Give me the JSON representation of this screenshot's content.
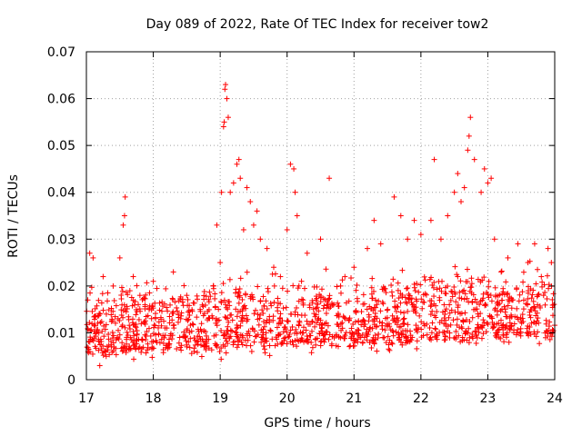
{
  "chart_data": {
    "type": "scatter",
    "title": "Day 089 of 2022, Rate Of TEC Index for receiver tow2",
    "xlabel": "GPS time / hours",
    "ylabel": "ROTI / TECUs",
    "xlim": [
      17,
      24
    ],
    "ylim": [
      0,
      0.07
    ],
    "grid": true,
    "marker": "+",
    "color": "#ff0000",
    "x_ticks": [
      17,
      18,
      19,
      20,
      21,
      22,
      23,
      24
    ],
    "x_tick_labels": [
      "17",
      "18",
      "19",
      "20",
      "21",
      "22",
      "23",
      "24"
    ],
    "y_ticks": [
      0,
      0.01,
      0.02,
      0.03,
      0.04,
      0.05,
      0.06,
      0.07
    ],
    "y_tick_labels": [
      "0",
      "0.01",
      "0.02",
      "0.03",
      "0.04",
      "0.05",
      "0.06",
      "0.07"
    ],
    "series": [
      {
        "name": "ROTI",
        "points": [
          [
            17.05,
            0.027
          ],
          [
            17.1,
            0.026
          ],
          [
            17.2,
            0.003
          ],
          [
            17.25,
            0.022
          ],
          [
            17.4,
            0.02
          ],
          [
            17.5,
            0.026
          ],
          [
            17.55,
            0.033
          ],
          [
            17.57,
            0.035
          ],
          [
            17.58,
            0.039
          ],
          [
            17.7,
            0.022
          ],
          [
            17.8,
            0.018
          ],
          [
            18.0,
            0.021
          ],
          [
            18.3,
            0.023
          ],
          [
            18.5,
            0.018
          ],
          [
            18.7,
            0.015
          ],
          [
            18.9,
            0.02
          ],
          [
            18.95,
            0.033
          ],
          [
            19.0,
            0.025
          ],
          [
            19.02,
            0.04
          ],
          [
            19.05,
            0.054
          ],
          [
            19.06,
            0.055
          ],
          [
            19.07,
            0.062
          ],
          [
            19.08,
            0.063
          ],
          [
            19.1,
            0.06
          ],
          [
            19.12,
            0.056
          ],
          [
            19.15,
            0.04
          ],
          [
            19.2,
            0.042
          ],
          [
            19.25,
            0.046
          ],
          [
            19.28,
            0.047
          ],
          [
            19.3,
            0.043
          ],
          [
            19.35,
            0.032
          ],
          [
            19.4,
            0.041
          ],
          [
            19.45,
            0.038
          ],
          [
            19.5,
            0.033
          ],
          [
            19.55,
            0.036
          ],
          [
            19.6,
            0.03
          ],
          [
            19.7,
            0.028
          ],
          [
            19.8,
            0.024
          ],
          [
            19.9,
            0.022
          ],
          [
            20.0,
            0.032
          ],
          [
            20.05,
            0.046
          ],
          [
            20.1,
            0.045
          ],
          [
            20.12,
            0.04
          ],
          [
            20.15,
            0.035
          ],
          [
            20.3,
            0.027
          ],
          [
            20.5,
            0.03
          ],
          [
            20.63,
            0.043
          ],
          [
            20.8,
            0.02
          ],
          [
            21.0,
            0.024
          ],
          [
            21.2,
            0.028
          ],
          [
            21.3,
            0.034
          ],
          [
            21.4,
            0.029
          ],
          [
            21.6,
            0.039
          ],
          [
            21.7,
            0.035
          ],
          [
            21.8,
            0.03
          ],
          [
            21.9,
            0.034
          ],
          [
            22.0,
            0.031
          ],
          [
            22.15,
            0.034
          ],
          [
            22.2,
            0.047
          ],
          [
            22.3,
            0.03
          ],
          [
            22.4,
            0.035
          ],
          [
            22.5,
            0.04
          ],
          [
            22.55,
            0.044
          ],
          [
            22.6,
            0.038
          ],
          [
            22.65,
            0.041
          ],
          [
            22.7,
            0.049
          ],
          [
            22.72,
            0.052
          ],
          [
            22.74,
            0.056
          ],
          [
            22.8,
            0.047
          ],
          [
            22.9,
            0.04
          ],
          [
            22.95,
            0.045
          ],
          [
            23.0,
            0.042
          ],
          [
            23.05,
            0.043
          ],
          [
            23.1,
            0.03
          ],
          [
            23.2,
            0.023
          ],
          [
            23.3,
            0.026
          ],
          [
            23.45,
            0.029
          ],
          [
            23.6,
            0.025
          ],
          [
            23.7,
            0.029
          ],
          [
            23.8,
            0.022
          ],
          [
            23.9,
            0.028
          ],
          [
            23.95,
            0.025
          ]
        ],
        "baseline_band": {
          "description_range_x": [
            17,
            24
          ],
          "typical_min": 0.004,
          "typical_max": 0.022
        }
      }
    ]
  }
}
